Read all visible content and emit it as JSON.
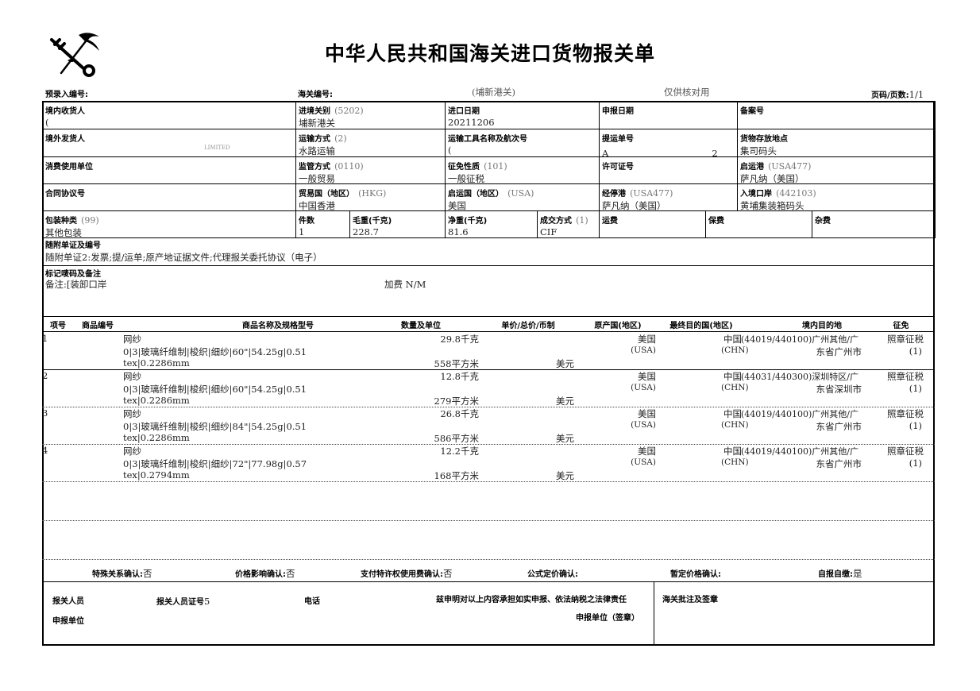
{
  "header": {
    "title": "中华人民共和国海关进口货物报关单",
    "pre_entry_no_label": "预录入编号:",
    "customs_no_label": "海关编号:",
    "customs_office": "(埔新港关)",
    "note": "仅供核对用",
    "page_label": "页码/页数:",
    "page_value": "1/1"
  },
  "fields": {
    "consignee": {
      "label": "境内收货人",
      "value": "("
    },
    "entry_customs": {
      "label": "进境关别",
      "code": "(5202)",
      "value": "埔新港关"
    },
    "import_date": {
      "label": "进口日期",
      "value": "20211206"
    },
    "declare_date": {
      "label": "申报日期",
      "value": ""
    },
    "record_no": {
      "label": "备案号",
      "value": ""
    },
    "consignor": {
      "label": "境外发货人",
      "value": "LIMITED"
    },
    "transport_mode": {
      "label": "运输方式",
      "code": "(2)",
      "value": "水路运输"
    },
    "vessel": {
      "label": "运输工具名称及航次号",
      "value": "("
    },
    "bill_no": {
      "label": "提运单号",
      "value": "A",
      "value2": "2"
    },
    "storage_place": {
      "label": "货物存放地点",
      "value": "集司码头"
    },
    "consumer": {
      "label": "消费使用单位",
      "value": ""
    },
    "supervision": {
      "label": "监管方式",
      "code": "(0110)",
      "value": "一般贸易"
    },
    "levy_nature": {
      "label": "征免性质",
      "code": "(101)",
      "value": "一般征税"
    },
    "license_no": {
      "label": "许可证号",
      "value": ""
    },
    "departure_port": {
      "label": "启运港",
      "code": "(USA477)",
      "value": "萨凡纳（美国）"
    },
    "contract_no": {
      "label": "合同协议号",
      "value": ""
    },
    "trade_country": {
      "label": "贸易国（地区）",
      "code": "(HKG)",
      "value": "中国香港"
    },
    "origin_country": {
      "label": "启运国（地区）",
      "code": "(USA)",
      "value": "美国"
    },
    "transit_port": {
      "label": "经停港",
      "code": "(USA477)",
      "value": "萨凡纳（美国）"
    },
    "entry_port": {
      "label": "入境口岸",
      "code": "(442103)",
      "value": "黄埔集装箱码头"
    },
    "package_type": {
      "label": "包装种类",
      "code": "(99)",
      "value": "其他包装"
    },
    "pieces": {
      "label": "件数",
      "value": "1"
    },
    "gross_weight": {
      "label": "毛重(千克)",
      "value": "228.7"
    },
    "net_weight": {
      "label": "净重(千克)",
      "value": "81.6"
    },
    "deal_mode": {
      "label": "成交方式",
      "code": "(1)",
      "value": "CIF"
    },
    "freight": {
      "label": "运费",
      "value": ""
    },
    "insurance": {
      "label": "保费",
      "value": ""
    },
    "misc": {
      "label": "杂费",
      "value": ""
    },
    "documents": {
      "label": "随附单证及编号",
      "value": "随附单证2:发票;提/运单;原产地证据文件;代理报关委托协议（电子）"
    },
    "marks": {
      "label": "标记唛码及备注",
      "value": "备注:[装卸口岸",
      "extra": "加费 N/M"
    }
  },
  "items_header": [
    "项号",
    "商品编号",
    "商品名称及规格型号",
    "数量及单位",
    "单价/总价/币制",
    "原产国(地区)",
    "最终目的国(地区)",
    "境内目的地",
    "征免"
  ],
  "items": [
    {
      "no": "1",
      "name": "网纱",
      "spec1": "0|3|玻璃纤维制|梭织|细纱|60\"|54.25g|0.51",
      "spec2": "tex|0.2286mm",
      "qty1": "29.8千克",
      "qty2": "558平方米",
      "currency": "美元",
      "origin": "美国",
      "origin_code": "(USA)",
      "dest": "中国",
      "dest_code": "(CHN)",
      "domestic1": "(44019/440100)广州其他/广",
      "domestic2": "东省广州市",
      "levy1": "照章征税",
      "levy2": "(1)"
    },
    {
      "no": "2",
      "name": "网纱",
      "spec1": "0|3|玻璃纤维制|梭织|细纱|60\"|54.25g|0.51",
      "spec2": "tex|0.2286mm",
      "qty1": "12.8千克",
      "qty2": "279平方米",
      "currency": "美元",
      "origin": "美国",
      "origin_code": "(USA)",
      "dest": "中国",
      "dest_code": "(CHN)",
      "domestic1": "(44031/440300)深圳特区/广",
      "domestic2": "东省深圳市",
      "levy1": "照章征税",
      "levy2": "(1)"
    },
    {
      "no": "3",
      "name": "网纱",
      "spec1": "0|3|玻璃纤维制|梭织|细纱|84\"|54.25g|0.51",
      "spec2": "tex|0.2286mm",
      "qty1": "26.8千克",
      "qty2": "586平方米",
      "currency": "美元",
      "origin": "美国",
      "origin_code": "(USA)",
      "dest": "中国",
      "dest_code": "(CHN)",
      "domestic1": "(44019/440100)广州其他/广",
      "domestic2": "东省广州市",
      "levy1": "照章征税",
      "levy2": "(1)"
    },
    {
      "no": "4",
      "name": "网纱",
      "spec1": "0|3|玻璃纤维制|梭织|细纱|72\"|77.98g|0.57",
      "spec2": "tex|0.2794mm",
      "qty1": "12.2千克",
      "qty2": "168平方米",
      "currency": "美元",
      "origin": "美国",
      "origin_code": "(USA)",
      "dest": "中国",
      "dest_code": "(CHN)",
      "domestic1": "(44019/440100)广州其他/广",
      "domestic2": "东省广州市",
      "levy1": "照章征税",
      "levy2": "(1)"
    }
  ],
  "confirm": [
    {
      "label": "特殊关系确认:",
      "value": "否"
    },
    {
      "label": "价格影响确认:",
      "value": "否"
    },
    {
      "label": "支付特许权使用费确认:",
      "value": "否"
    },
    {
      "label": "公式定价确认:",
      "value": ""
    },
    {
      "label": "暂定价格确认:",
      "value": ""
    },
    {
      "label": "自报自缴:",
      "value": "是"
    }
  ],
  "footer": {
    "broker_label": "报关人员",
    "broker_id_label": "报关人员证号",
    "broker_id_value": "5",
    "phone_label": "电话",
    "statement": "兹申明对以上内容承担如实申报、依法纳税之法律责任",
    "declare_unit_label": "申报单位",
    "declare_unit_seal": "申报单位（签章）",
    "customs_remark": "海关批注及签章"
  }
}
